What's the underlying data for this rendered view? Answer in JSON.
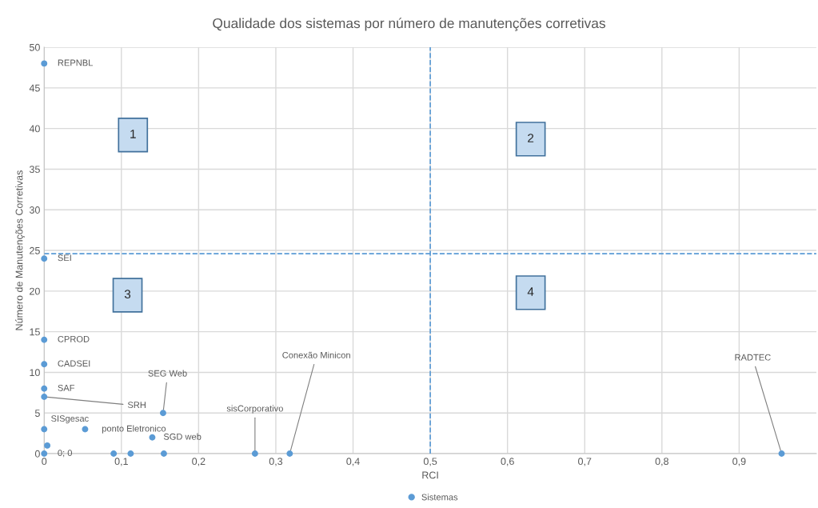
{
  "chart_data": {
    "type": "scatter",
    "title": "Qualidade dos sistemas por número de manutenções corretivas",
    "xlabel": "RCI",
    "ylabel": "Número de Manutenções Corretivas",
    "series": [
      {
        "name": "Sistemas",
        "color": "#5b9bd5",
        "x": [
          0,
          0,
          0,
          0,
          0,
          0,
          0,
          0.004,
          0.053,
          0.14,
          0.154,
          0,
          0.09,
          0.112,
          0.155,
          0.273,
          0.318,
          0.955
        ],
        "values": [
          48,
          24,
          14,
          11,
          8,
          7,
          3,
          1,
          3,
          2,
          5,
          0,
          0,
          0,
          0,
          0,
          0,
          0
        ]
      }
    ],
    "xlim": [
      0,
      1
    ],
    "ylim": [
      0,
      50
    ],
    "xticks": [
      0,
      {
        "value": 0.1,
        "label": "0,1"
      },
      {
        "value": 0.2,
        "label": "0,2"
      },
      {
        "value": 0.3,
        "label": "0,3"
      },
      {
        "value": 0.4,
        "label": "0,4"
      },
      {
        "value": 0.5,
        "label": "0,5"
      },
      {
        "value": 0.6,
        "label": "0,6"
      },
      {
        "value": 0.7,
        "label": "0,7"
      },
      {
        "value": 0.8,
        "label": "0,8"
      },
      {
        "value": 0.9,
        "label": "0,9"
      }
    ],
    "yticks": [
      0,
      5,
      10,
      15,
      20,
      25,
      30,
      35,
      40,
      45,
      50
    ],
    "ref_lines": [
      {
        "axis": "x",
        "value": 0.5,
        "color": "#5b9bd5",
        "line_style": "dashed"
      },
      {
        "axis": "y",
        "value": 24.6,
        "color": "#5b9bd5",
        "line_style": "dashed"
      }
    ],
    "annotations": [
      {
        "text": "REPNBL",
        "x": 0,
        "y": 48
      },
      {
        "text": "SEI",
        "x": 0,
        "y": 24
      },
      {
        "text": "CPROD",
        "x": 0,
        "y": 14
      },
      {
        "text": "CADSEI",
        "x": 0,
        "y": 11
      },
      {
        "text": "SAF",
        "x": 0,
        "y": 8
      },
      {
        "text": "SRH",
        "x": 0,
        "y": 7
      },
      {
        "text": "SISgesac",
        "x": 0,
        "y": 3
      },
      {
        "text": "ponto Eletronico",
        "x": 0.053,
        "y": 3
      },
      {
        "text": "SGD web",
        "x": 0.14,
        "y": 2
      },
      {
        "text": "SEG Web",
        "x": 0.154,
        "y": 5
      },
      {
        "text": "sisCorporativo",
        "x": 0.273,
        "y": 0
      },
      {
        "text": "Conexão Minicon",
        "x": 0.318,
        "y": 0
      },
      {
        "text": "RADTEC",
        "x": 0.955,
        "y": 0
      },
      {
        "text": "0; 0",
        "x": 0,
        "y": 0
      },
      {
        "text": "1",
        "x": 0.115,
        "y": 39.2
      },
      {
        "text": "2",
        "x": 0.63,
        "y": 38.7
      },
      {
        "text": "3",
        "x": 0.108,
        "y": 19.5
      },
      {
        "text": "4",
        "x": 0.63,
        "y": 19.8
      }
    ],
    "grid": true,
    "legend": "bottom",
    "marker": "circle"
  }
}
